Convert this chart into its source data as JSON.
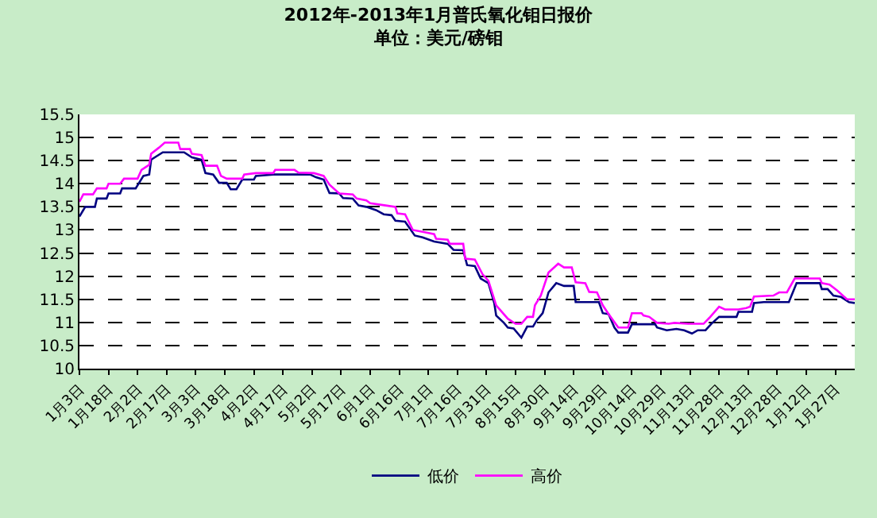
{
  "chart_data": {
    "type": "line",
    "title": "2012年-2013年1月普氏氧化钼日报价",
    "subtitle": "单位：美元/磅钼",
    "xlim": [
      "2012-01-03",
      "2013-02-06"
    ],
    "ylim": [
      10,
      15.5
    ],
    "yticks": [
      10,
      10.5,
      11,
      11.5,
      12,
      12.5,
      13,
      13.5,
      14,
      14.5,
      15,
      15.5
    ],
    "xticks": [
      {
        "value": "2012-01-03",
        "label": "1月3日"
      },
      {
        "value": "2012-01-18",
        "label": "1月18日"
      },
      {
        "value": "2012-02-02",
        "label": "2月2日"
      },
      {
        "value": "2012-02-17",
        "label": "2月17日"
      },
      {
        "value": "2012-03-03",
        "label": "3月3日"
      },
      {
        "value": "2012-03-18",
        "label": "3月18日"
      },
      {
        "value": "2012-04-02",
        "label": "4月2日"
      },
      {
        "value": "2012-04-17",
        "label": "4月17日"
      },
      {
        "value": "2012-05-02",
        "label": "5月2日"
      },
      {
        "value": "2012-05-17",
        "label": "5月17日"
      },
      {
        "value": "2012-06-01",
        "label": "6月1日"
      },
      {
        "value": "2012-06-16",
        "label": "6月16日"
      },
      {
        "value": "2012-07-01",
        "label": "7月1日"
      },
      {
        "value": "2012-07-16",
        "label": "7月16日"
      },
      {
        "value": "2012-07-31",
        "label": "7月31日"
      },
      {
        "value": "2012-08-15",
        "label": "8月15日"
      },
      {
        "value": "2012-08-30",
        "label": "8月30日"
      },
      {
        "value": "2012-09-14",
        "label": "9月14日"
      },
      {
        "value": "2012-09-29",
        "label": "9月29日"
      },
      {
        "value": "2012-10-14",
        "label": "10月14日"
      },
      {
        "value": "2012-10-29",
        "label": "10月29日"
      },
      {
        "value": "2012-11-13",
        "label": "11月13日"
      },
      {
        "value": "2012-11-28",
        "label": "11月28日"
      },
      {
        "value": "2012-12-13",
        "label": "12月13日"
      },
      {
        "value": "2012-12-28",
        "label": "12月28日"
      },
      {
        "value": "2013-01-12",
        "label": "1月12日"
      },
      {
        "value": "2013-01-27",
        "label": "1月27日"
      }
    ],
    "grid": "y",
    "legend": "bottom",
    "series": [
      {
        "name": "低价",
        "color": "#000080",
        "x": [
          "2012-01-03",
          "2012-01-06",
          "2012-01-11",
          "2012-01-12",
          "2012-01-17",
          "2012-01-18",
          "2012-01-24",
          "2012-01-25",
          "2012-02-01",
          "2012-02-05",
          "2012-02-08",
          "2012-02-09",
          "2012-02-15",
          "2012-02-26",
          "2012-03-01",
          "2012-03-06",
          "2012-03-08",
          "2012-03-12",
          "2012-03-15",
          "2012-03-19",
          "2012-03-21",
          "2012-03-24",
          "2012-03-27",
          "2012-04-02",
          "2012-04-03",
          "2012-04-12",
          "2012-05-01",
          "2012-05-04",
          "2012-05-08",
          "2012-05-11",
          "2012-05-16",
          "2012-05-18",
          "2012-05-23",
          "2012-05-26",
          "2012-05-30",
          "2012-06-04",
          "2012-06-08",
          "2012-06-12",
          "2012-06-14",
          "2012-06-19",
          "2012-06-24",
          "2012-06-28",
          "2012-07-04",
          "2012-07-11",
          "2012-07-14",
          "2012-07-19",
          "2012-07-21",
          "2012-07-25",
          "2012-07-28",
          "2012-08-01",
          "2012-08-04",
          "2012-08-05",
          "2012-08-09",
          "2012-08-11",
          "2012-08-14",
          "2012-08-18",
          "2012-08-21",
          "2012-08-24",
          "2012-08-26",
          "2012-08-29",
          "2012-09-01",
          "2012-09-05",
          "2012-09-09",
          "2012-09-14",
          "2012-09-15",
          "2012-09-27",
          "2012-09-29",
          "2012-10-02",
          "2012-10-05",
          "2012-10-07",
          "2012-10-12",
          "2012-10-14",
          "2012-10-26",
          "2012-10-27",
          "2012-11-01",
          "2012-11-06",
          "2012-11-10",
          "2012-11-14",
          "2012-11-17",
          "2012-11-21",
          "2012-11-24",
          "2012-11-28",
          "2012-12-07",
          "2012-12-08",
          "2012-12-15",
          "2012-12-16",
          "2012-12-21",
          "2013-01-03",
          "2013-01-07",
          "2013-01-19",
          "2013-01-20",
          "2013-01-23",
          "2013-01-26",
          "2013-01-30",
          "2013-02-03",
          "2013-02-06"
        ],
        "values": [
          13.29,
          13.5,
          13.5,
          13.68,
          13.68,
          13.79,
          13.79,
          13.9,
          13.9,
          14.17,
          14.2,
          14.52,
          14.68,
          14.68,
          14.57,
          14.52,
          14.23,
          14.2,
          14.02,
          14.02,
          13.88,
          13.88,
          14.09,
          14.09,
          14.17,
          14.2,
          14.2,
          14.14,
          14.09,
          13.8,
          13.79,
          13.69,
          13.68,
          13.53,
          13.5,
          13.43,
          13.34,
          13.32,
          13.2,
          13.18,
          12.88,
          12.84,
          12.75,
          12.7,
          12.57,
          12.56,
          12.24,
          12.22,
          11.95,
          11.85,
          11.42,
          11.15,
          10.99,
          10.89,
          10.87,
          10.67,
          10.91,
          10.91,
          11.05,
          11.2,
          11.65,
          11.85,
          11.79,
          11.79,
          11.44,
          11.44,
          11.2,
          11.18,
          10.89,
          10.78,
          10.78,
          10.96,
          10.96,
          10.89,
          10.83,
          10.86,
          10.83,
          10.76,
          10.83,
          10.83,
          10.97,
          11.12,
          11.12,
          11.23,
          11.23,
          11.42,
          11.44,
          11.44,
          11.85,
          11.85,
          11.72,
          11.72,
          11.58,
          11.55,
          11.44,
          11.42
        ]
      },
      {
        "name": "高价",
        "color": "#ff00ff",
        "x": [
          "2012-01-03",
          "2012-01-05",
          "2012-01-10",
          "2012-01-12",
          "2012-01-17",
          "2012-01-18",
          "2012-01-24",
          "2012-01-26",
          "2012-02-02",
          "2012-02-04",
          "2012-02-08",
          "2012-02-09",
          "2012-02-13",
          "2012-02-16",
          "2012-02-23",
          "2012-02-24",
          "2012-02-29",
          "2012-03-01",
          "2012-03-06",
          "2012-03-08",
          "2012-03-14",
          "2012-03-16",
          "2012-03-19",
          "2012-03-27",
          "2012-03-28",
          "2012-04-03",
          "2012-04-12",
          "2012-04-13",
          "2012-04-23",
          "2012-04-25",
          "2012-05-03",
          "2012-05-08",
          "2012-05-11",
          "2012-05-16",
          "2012-05-23",
          "2012-05-25",
          "2012-05-30",
          "2012-06-01",
          "2012-06-09",
          "2012-06-14",
          "2012-06-15",
          "2012-06-19",
          "2012-06-23",
          "2012-06-28",
          "2012-07-04",
          "2012-07-05",
          "2012-07-11",
          "2012-07-12",
          "2012-07-19",
          "2012-07-20",
          "2012-07-25",
          "2012-07-29",
          "2012-08-01",
          "2012-08-05",
          "2012-08-11",
          "2012-08-15",
          "2012-08-18",
          "2012-08-21",
          "2012-08-24",
          "2012-08-25",
          "2012-08-28",
          "2012-09-01",
          "2012-09-06",
          "2012-09-09",
          "2012-09-13",
          "2012-09-15",
          "2012-09-20",
          "2012-09-22",
          "2012-09-26",
          "2012-09-29",
          "2012-10-02",
          "2012-10-07",
          "2012-10-12",
          "2012-10-14",
          "2012-10-19",
          "2012-10-20",
          "2012-10-23",
          "2012-10-27",
          "2012-11-02",
          "2012-11-05",
          "2012-11-12",
          "2012-11-20",
          "2012-11-23",
          "2012-11-28",
          "2012-12-01",
          "2012-12-08",
          "2012-12-12",
          "2012-12-14",
          "2012-12-16",
          "2012-12-26",
          "2012-12-29",
          "2013-01-02",
          "2013-01-06",
          "2013-01-19",
          "2013-01-20",
          "2013-01-24",
          "2013-01-28",
          "2013-02-02",
          "2013-02-06"
        ],
        "values": [
          13.61,
          13.77,
          13.77,
          13.9,
          13.9,
          14.0,
          14.0,
          14.11,
          14.11,
          14.3,
          14.41,
          14.65,
          14.78,
          14.89,
          14.89,
          14.75,
          14.75,
          14.65,
          14.62,
          14.39,
          14.39,
          14.17,
          14.11,
          14.11,
          14.2,
          14.23,
          14.23,
          14.3,
          14.3,
          14.24,
          14.23,
          14.17,
          13.98,
          13.79,
          13.77,
          13.68,
          13.64,
          13.58,
          13.53,
          13.5,
          13.36,
          13.34,
          13.0,
          12.96,
          12.91,
          12.81,
          12.79,
          12.7,
          12.7,
          12.38,
          12.36,
          12.04,
          11.9,
          11.37,
          11.08,
          10.97,
          10.97,
          11.12,
          11.12,
          11.37,
          11.58,
          12.08,
          12.27,
          12.19,
          12.19,
          11.87,
          11.85,
          11.66,
          11.65,
          11.37,
          11.18,
          10.89,
          10.89,
          11.2,
          11.2,
          11.15,
          11.12,
          10.99,
          10.97,
          10.99,
          10.97,
          10.97,
          11.1,
          11.34,
          11.28,
          11.28,
          11.31,
          11.34,
          11.56,
          11.58,
          11.65,
          11.65,
          11.95,
          11.95,
          11.85,
          11.82,
          11.69,
          11.5,
          11.5
        ]
      }
    ]
  }
}
